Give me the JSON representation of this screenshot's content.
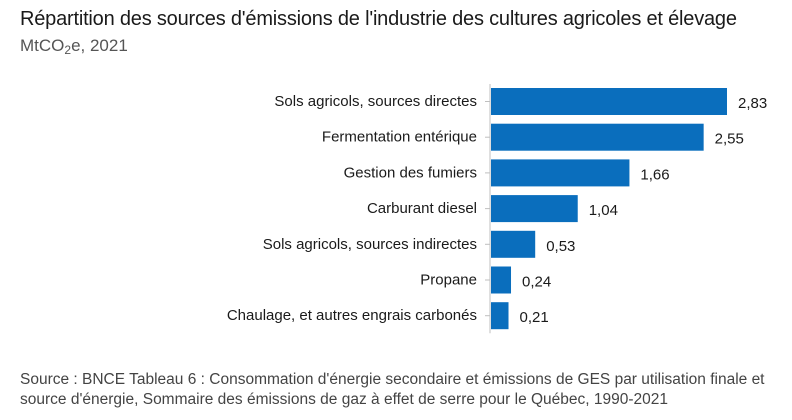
{
  "header": {
    "title": "Répartition des sources d'émissions de l'industrie des cultures agricoles et élevage",
    "subtitle_prefix": "MtCO",
    "subtitle_sub": "2",
    "subtitle_suffix": "e, 2021"
  },
  "chart_data": {
    "type": "bar",
    "orientation": "horizontal",
    "categories": [
      "Sols agricols, sources directes",
      "Fermentation entérique",
      "Gestion des fumiers",
      "Carburant diesel",
      "Sols agricols, sources indirectes",
      "Propane",
      "Chaulage,  et autres engrais carbonés"
    ],
    "values": [
      2.83,
      2.55,
      1.66,
      1.04,
      0.53,
      0.24,
      0.21
    ],
    "data_labels": [
      "2,83",
      "2,55",
      "1,66",
      "1,04",
      "0,53",
      "0,24",
      "0,21"
    ],
    "bar_color": "#0a6ebd",
    "xlim": [
      0,
      2.83
    ],
    "grid": false,
    "legend": "none"
  },
  "footer": {
    "source": "Source : BNCE Tableau 6 : Consommation d'énergie secondaire et émissions de GES par utilisation finale et source d'énergie, Sommaire des émissions de gaz à effet de serre pour le Québec, 1990-2021"
  }
}
